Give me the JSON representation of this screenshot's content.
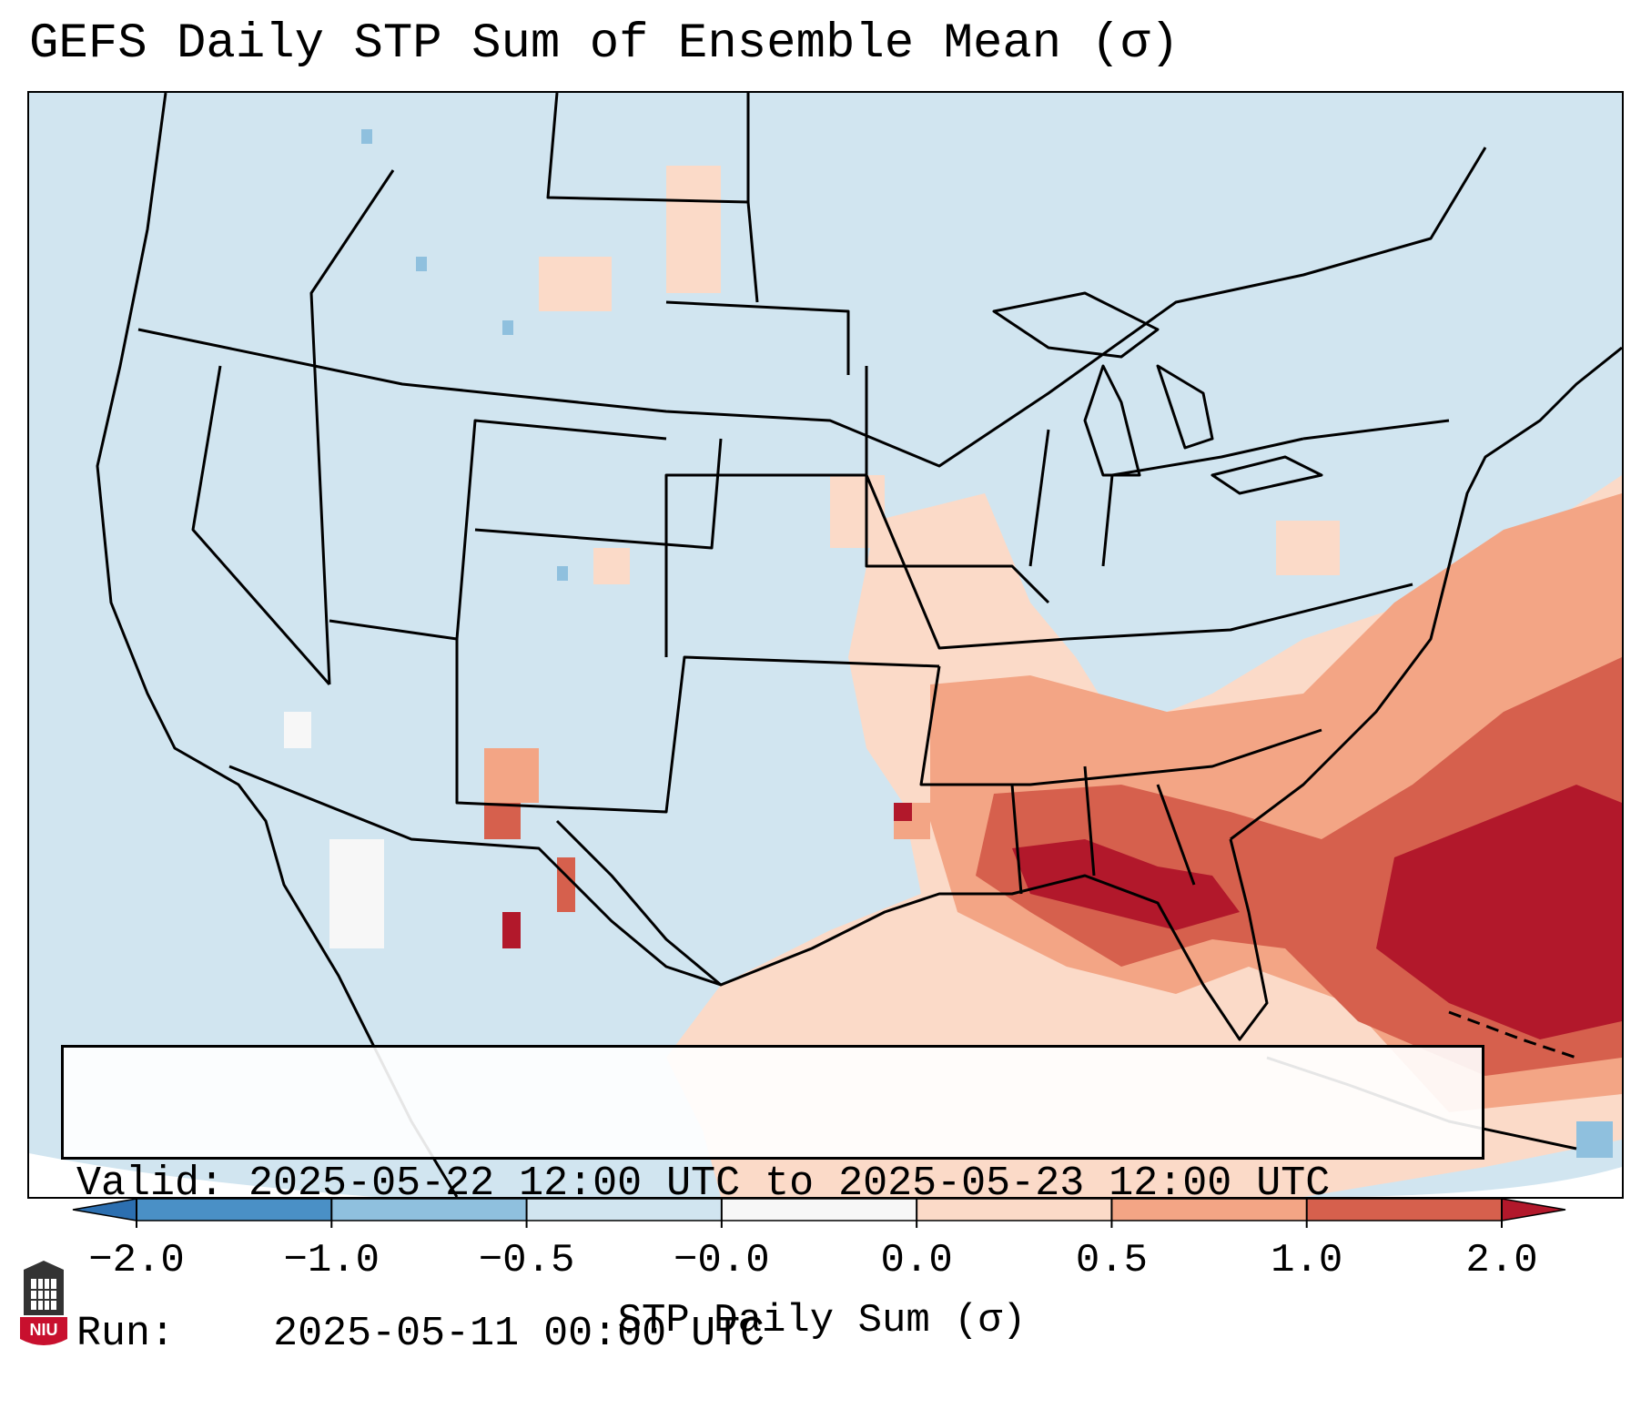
{
  "title": "GEFS Daily STP Sum of Ensemble Mean (σ)",
  "info": {
    "valid_label": "Valid:",
    "valid_value": "2025-05-22 12:00 UTC to 2025-05-23 12:00 UTC",
    "run_label": "Run:",
    "run_value": "2025-05-11 00:00 UTC"
  },
  "colorbar": {
    "label": "STP Daily Sum (σ)",
    "ticks": [
      "−2.0",
      "−1.0",
      "−0.5",
      "−0.0",
      "0.0",
      "0.5",
      "1.0",
      "2.0"
    ],
    "colors": [
      "#4a90c6",
      "#8fc0de",
      "#d1e5f0",
      "#f7f7f7",
      "#fbdac8",
      "#f3a585",
      "#d6604d",
      "#b2182b"
    ],
    "extend_low_color": "#2c6fb0",
    "extend_high_color": "#b2182b"
  },
  "map": {
    "background_color": "#d1e5f0",
    "projection": "Lambert Conformal",
    "region": "Contiguous United States",
    "overlay": "state and national boundaries"
  },
  "logo": {
    "text": "NIU",
    "icon": "niu-university-shield"
  }
}
